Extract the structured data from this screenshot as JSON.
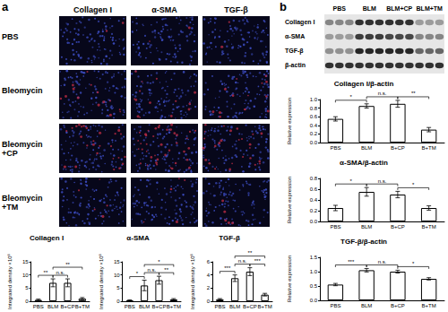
{
  "figure": {
    "panel_labels": [
      "a",
      "b"
    ],
    "micrographs": {
      "columns": [
        "Collagen I",
        "α-SMA",
        "TGF-β"
      ],
      "rows": [
        "PBS",
        "Bleomycin",
        "Bleomycin +CP",
        "Bleomycin +TM"
      ]
    },
    "blot": {
      "lanes": [
        "PBS",
        "BLM",
        "BLM+CP",
        "BLM+TM"
      ],
      "bands": [
        "Collagen I",
        "α-SMA",
        "TGF-β",
        "β-actin"
      ]
    }
  },
  "chart_data": [
    {
      "type": "bar",
      "title": "Collagen I",
      "y_label": "Integrated density ×10⁶",
      "categories": [
        "PBS",
        "BLM",
        "B+CP",
        "B+TM"
      ],
      "values": [
        0.5,
        7,
        7,
        1
      ],
      "errors": [
        0.3,
        1.5,
        1.5,
        0.4
      ],
      "color": "#ffffff",
      "ylim": [
        0,
        15
      ],
      "yticks": [
        0,
        5,
        10,
        15
      ],
      "grid": false,
      "significance": [
        {
          "from": "PBS",
          "to": "BLM",
          "label": "**"
        },
        {
          "from": "BLM",
          "to": "B+CP",
          "label": "n.s."
        },
        {
          "from": "BLM",
          "to": "B+TM",
          "label": "**"
        }
      ]
    },
    {
      "type": "bar",
      "title": "α-SMA",
      "y_label": "Integrated density ×10⁶",
      "categories": [
        "PBS",
        "BLM",
        "B+CP",
        "B+TM"
      ],
      "values": [
        0.3,
        6,
        8,
        0.7
      ],
      "errors": [
        0.2,
        2,
        1.5,
        0.3
      ],
      "color": "#ffffff",
      "ylim": [
        0,
        15
      ],
      "yticks": [
        0,
        5,
        10,
        15
      ],
      "grid": false,
      "significance": [
        {
          "from": "PBS",
          "to": "BLM",
          "label": "*"
        },
        {
          "from": "BLM",
          "to": "B+CP",
          "label": "n.s."
        },
        {
          "from": "B+CP",
          "to": "B+TM",
          "label": "**"
        },
        {
          "from": "BLM",
          "to": "B+TM",
          "label": "*"
        }
      ]
    },
    {
      "type": "bar",
      "title": "TGF-β",
      "y_label": "Integrated density ×10⁶",
      "categories": [
        "PBS",
        "BLM",
        "B+CP",
        "B+TM"
      ],
      "values": [
        0.3,
        3.5,
        4.5,
        1
      ],
      "errors": [
        0.1,
        0.5,
        0.6,
        0.2
      ],
      "color": "#ffffff",
      "ylim": [
        0,
        6
      ],
      "yticks": [
        0,
        2,
        4,
        6
      ],
      "grid": false,
      "significance": [
        {
          "from": "PBS",
          "to": "BLM",
          "label": "***"
        },
        {
          "from": "BLM",
          "to": "B+CP",
          "label": "n.s."
        },
        {
          "from": "B+CP",
          "to": "B+TM",
          "label": "***"
        },
        {
          "from": "BLM",
          "to": "B+TM",
          "label": "**"
        }
      ]
    },
    {
      "type": "bar",
      "title": "Collagen I/β-actin",
      "y_label": "Relative expression",
      "categories": [
        "PBS",
        "BLM",
        "B+CP",
        "B+TM"
      ],
      "values": [
        0.55,
        0.85,
        0.9,
        0.3
      ],
      "errors": [
        0.05,
        0.05,
        0.08,
        0.05
      ],
      "color": "#ffffff",
      "ylim": [
        0,
        1
      ],
      "yticks": [
        {
          "value": 0,
          "label": "0.0"
        },
        0.2,
        0.4,
        0.6,
        0.8,
        {
          "value": 1,
          "label": "1.0"
        }
      ],
      "grid": false,
      "significance": [
        {
          "from": "PBS",
          "to": "BLM",
          "label": "*"
        },
        {
          "from": "BLM",
          "to": "B+CP",
          "label": "n.s."
        },
        {
          "from": "B+CP",
          "to": "B+TM",
          "label": "**"
        }
      ]
    },
    {
      "type": "bar",
      "title": "α-SMA/β-actin",
      "y_label": "Relative expression",
      "categories": [
        "PBS",
        "BLM",
        "B+CP",
        "B+TM"
      ],
      "values": [
        0.25,
        0.55,
        0.5,
        0.25
      ],
      "errors": [
        0.05,
        0.08,
        0.06,
        0.04
      ],
      "color": "#ffffff",
      "ylim": [
        0,
        0.8
      ],
      "yticks": [
        {
          "value": 0,
          "label": "0.0"
        },
        0.2,
        0.4,
        0.6,
        0.8
      ],
      "grid": false,
      "significance": [
        {
          "from": "PBS",
          "to": "BLM",
          "label": "*"
        },
        {
          "from": "BLM",
          "to": "B+CP",
          "label": "n.s."
        },
        {
          "from": "B+CP",
          "to": "B+TM",
          "label": "*"
        }
      ]
    },
    {
      "type": "bar",
      "title": "TGF-β/β-actin",
      "y_label": "Relative expression",
      "categories": [
        "PBS",
        "BLM",
        "B+CP",
        "B+TM"
      ],
      "values": [
        0.55,
        1.05,
        1,
        0.75
      ],
      "errors": [
        0.04,
        0.06,
        0.05,
        0.04
      ],
      "color": "#ffffff",
      "ylim": [
        0,
        1.5
      ],
      "yticks": [
        {
          "value": 0,
          "label": "0.0"
        },
        0.5,
        {
          "value": 1,
          "label": "1.0"
        },
        1.5
      ],
      "grid": false,
      "significance": [
        {
          "from": "PBS",
          "to": "BLM",
          "label": "***"
        },
        {
          "from": "BLM",
          "to": "B+CP",
          "label": "n.s."
        },
        {
          "from": "B+CP",
          "to": "B+TM",
          "label": "*"
        }
      ]
    }
  ]
}
